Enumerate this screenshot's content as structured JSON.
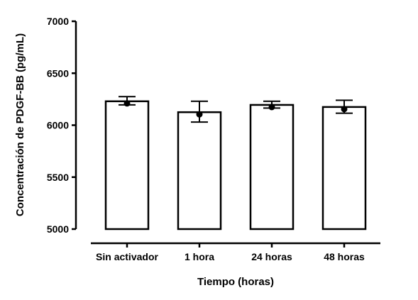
{
  "chart_data": {
    "type": "bar",
    "title": "",
    "xlabel": "Tiempo (horas)",
    "ylabel": "Concentración de PDGF-BB (pg/mL)",
    "ylim": [
      5000,
      7000
    ],
    "yticks": [
      5000,
      5500,
      6000,
      6500,
      7000
    ],
    "grid": false,
    "legend": "none",
    "categories": [
      "Sin activador",
      "1 hora",
      "24 horas",
      "48 horas"
    ],
    "values": [
      6230,
      6125,
      6195,
      6175
    ],
    "error_upper": [
      6275,
      6230,
      6230,
      6240
    ],
    "error_lower": [
      6195,
      6030,
      6165,
      6115
    ],
    "colors": {
      "bar_fill": "#ffffff",
      "bar_stroke": "#000000",
      "marker": "#000000"
    }
  }
}
